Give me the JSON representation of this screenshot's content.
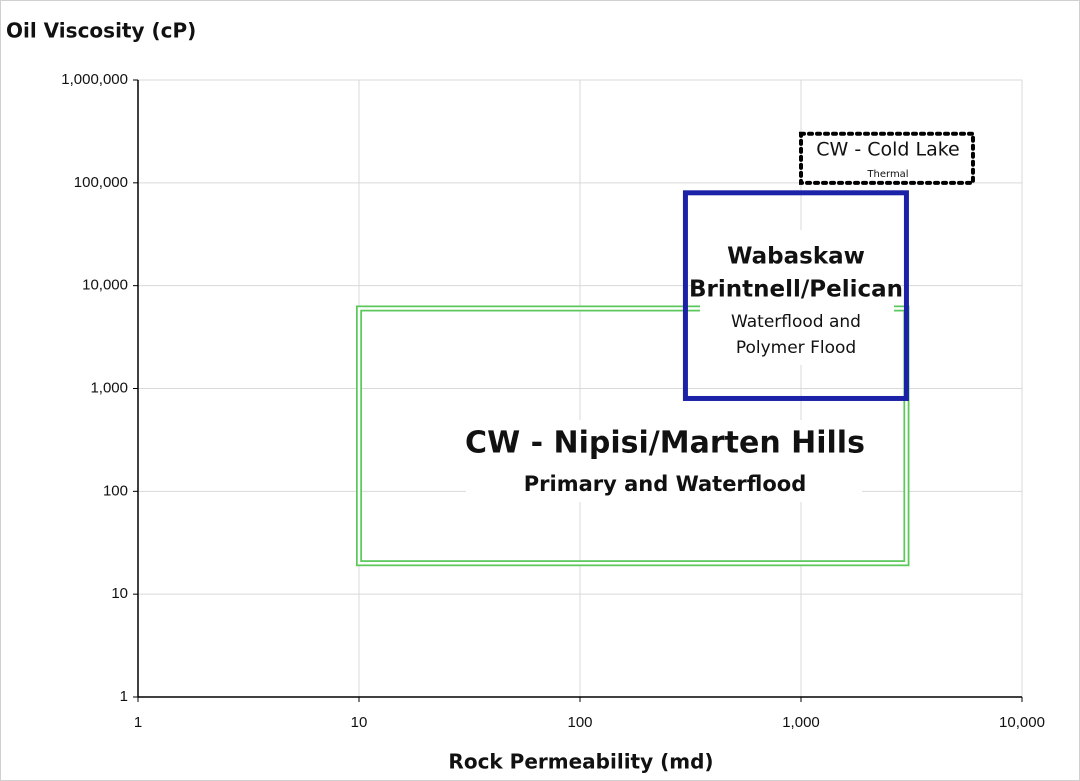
{
  "chart_data": {
    "type": "region",
    "x_label": "Rock Permeability (md)",
    "y_label": "Oil Viscosity (cP)",
    "x_scale": "log",
    "y_scale": "log",
    "grid": true,
    "xlim": [
      1,
      10000
    ],
    "xticks": [
      1,
      10,
      100,
      {
        "value": 1000,
        "label": "1,000"
      },
      {
        "value": 10000,
        "label": "10,000"
      }
    ],
    "ylim": [
      1,
      1000000
    ],
    "yticks": [
      1,
      10,
      100,
      {
        "value": 1000,
        "label": "1,000"
      },
      {
        "value": 10000,
        "label": "10,000"
      },
      {
        "value": 100000,
        "label": "100,000"
      },
      {
        "value": 1000000,
        "label": "1,000,000"
      }
    ],
    "regions": [
      {
        "labels": [
          "CW - Nipisi/Marten Hills",
          "Primary and Waterflood"
        ],
        "xrange": [
          10,
          3000
        ],
        "yrange": [
          20,
          6000
        ],
        "color": "#5cc85c",
        "style": "double"
      },
      {
        "labels": [
          "Wabaskaw",
          "Brintnell/Pelican",
          "Waterflood and",
          "Polymer Flood"
        ],
        "xrange": [
          300,
          3000
        ],
        "yrange": [
          800,
          80000
        ],
        "color": "#1c22a8",
        "style": "solid"
      },
      {
        "labels": [
          "CW - Cold Lake",
          "Thermal"
        ],
        "xrange": [
          1000,
          6000
        ],
        "yrange": [
          100000,
          300000
        ],
        "color": "#000000",
        "style": "dotted"
      }
    ]
  }
}
